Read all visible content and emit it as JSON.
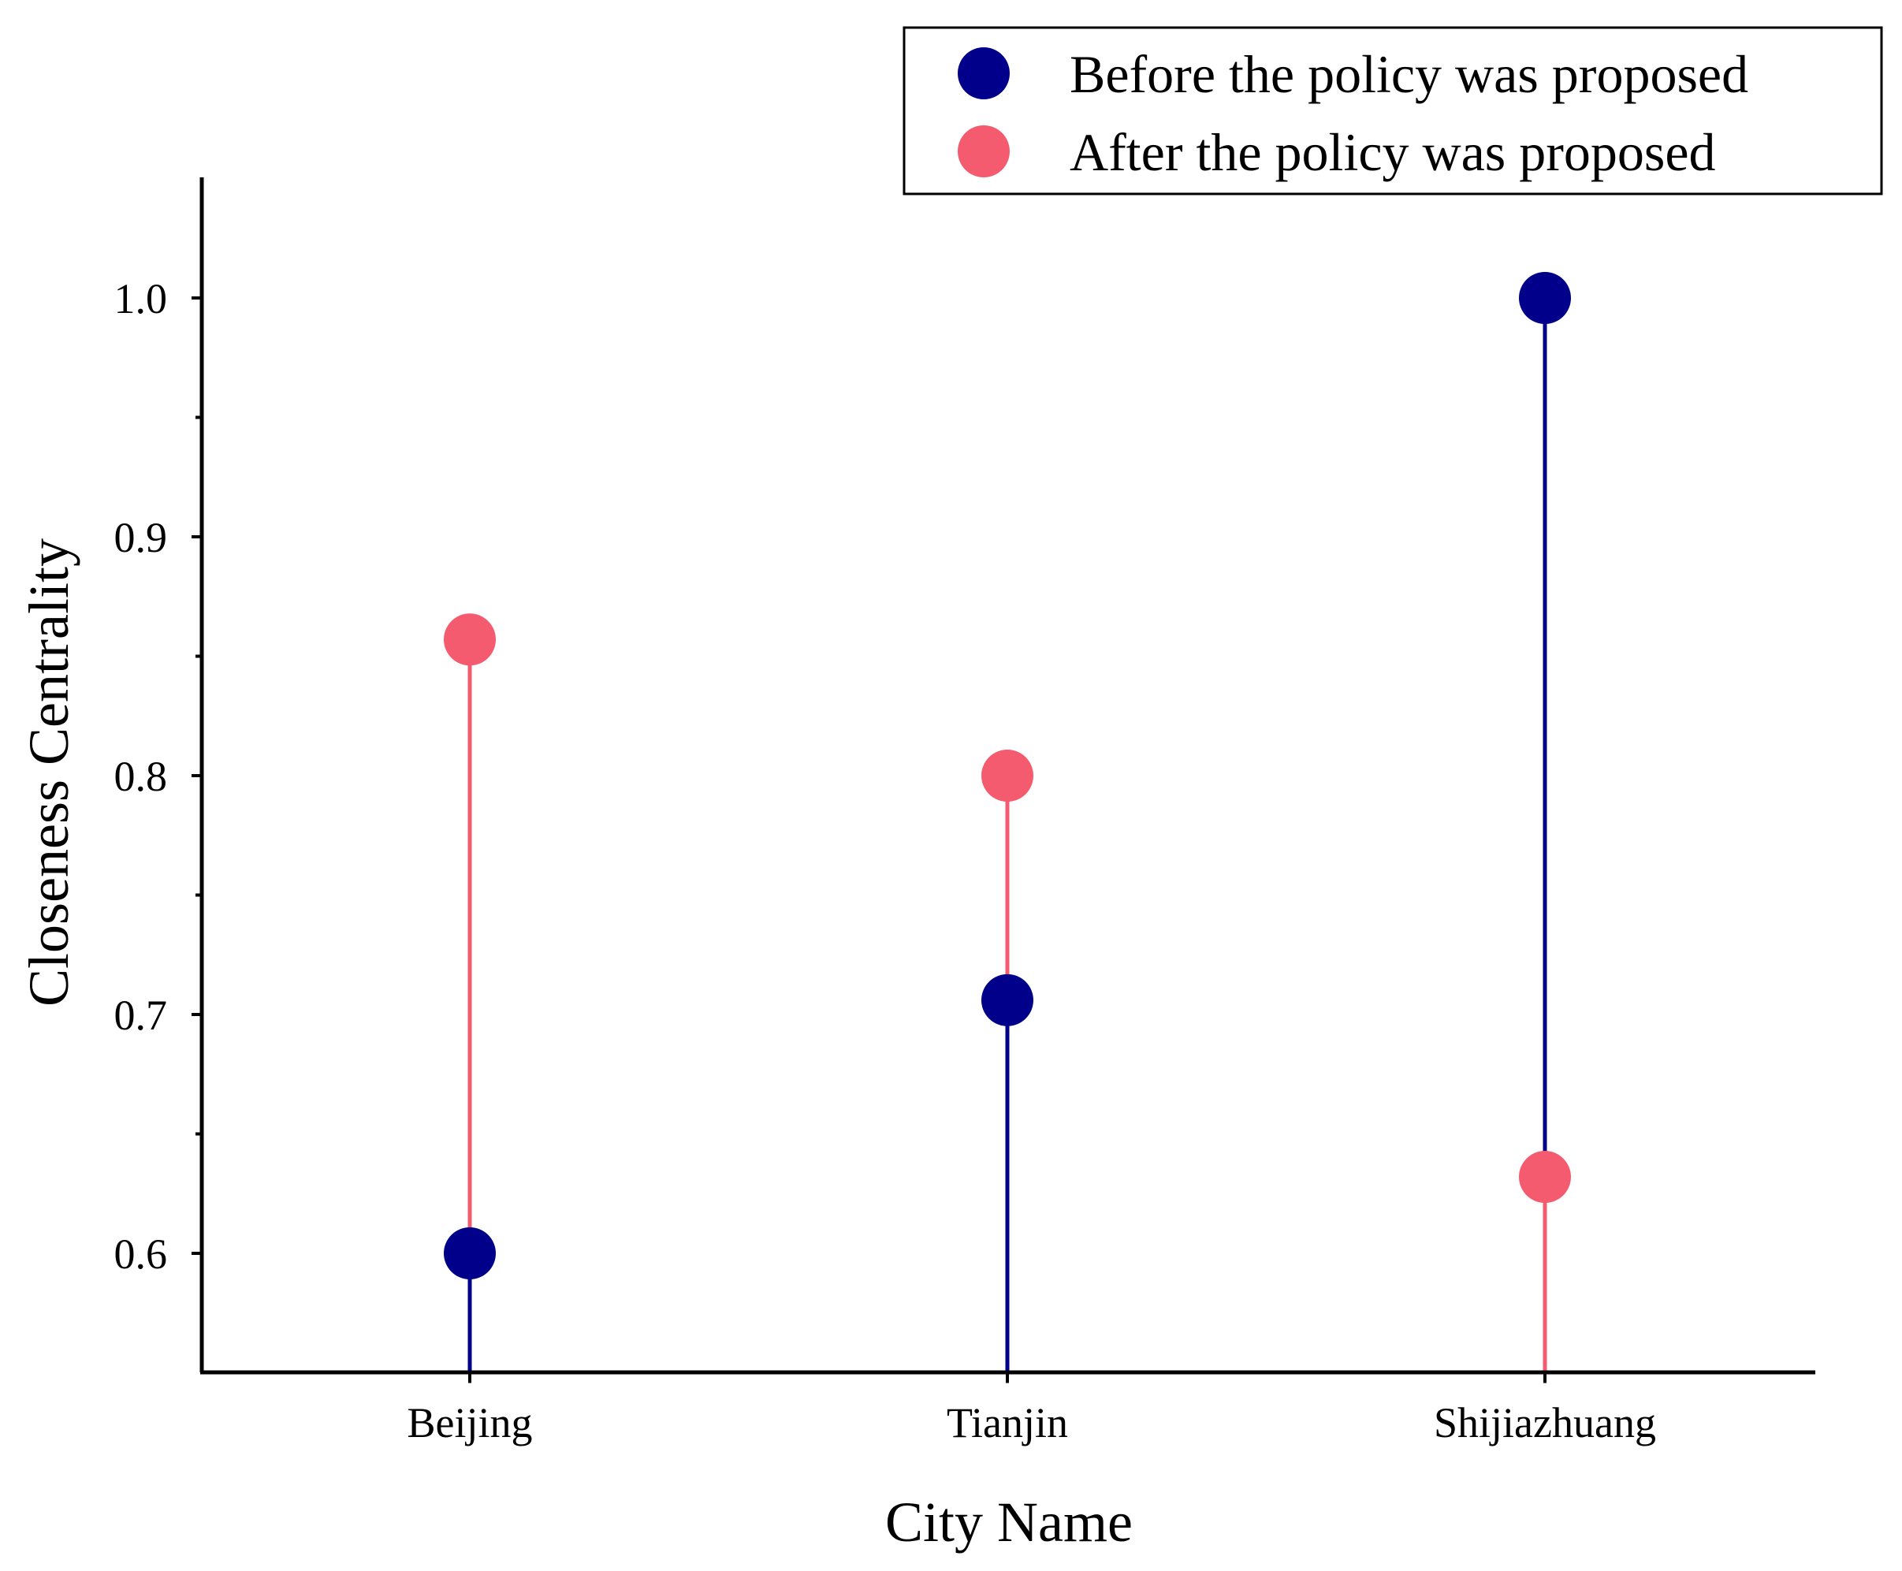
{
  "chart_data": {
    "type": "lollipop",
    "title": "",
    "xlabel": "City Name",
    "ylabel": "Closeness Centrality",
    "categories": [
      "Beijing",
      "Tianjin",
      "Shijiazhuang"
    ],
    "series": [
      {
        "name": "Before the policy was proposed",
        "color": "#00008B",
        "values": [
          0.6,
          0.706,
          1.0
        ]
      },
      {
        "name": "After the policy was proposed",
        "color": "#F45B6E",
        "values": [
          0.857,
          0.8,
          0.632
        ]
      }
    ],
    "ylim": [
      0.55,
      1.05
    ],
    "yticks": [
      0.6,
      0.7,
      0.8,
      0.9,
      1.0
    ],
    "ytick_labels": [
      "0.6",
      "0.7",
      "0.8",
      "0.9",
      "1.0"
    ],
    "grid": false,
    "legend_position": "top-right"
  }
}
